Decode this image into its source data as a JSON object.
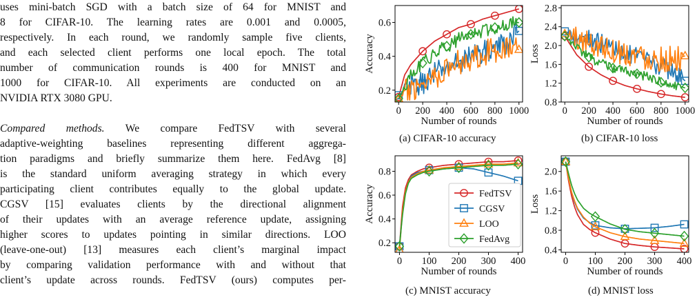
{
  "text": {
    "p1_lines": [
      "uses mini-batch SGD with a batch size of 64 for MNIST and",
      "8 for CIFAR-10. The learning rates are 0.001 and 0.0005,",
      "respectively. In each round, we randomly sample five clients,",
      "and each selected client performs one local epoch. The total",
      "number of communication rounds is 400 for MNIST and",
      "1000 for CIFAR-10. All experiments are conducted on an",
      "NVIDIA RTX 3080 GPU."
    ],
    "p2_heading": "Compared methods.",
    "p2_first_rest": " We compare FedTSV with several",
    "p2_lines": [
      "adaptive-weighting baselines representing different aggrega-",
      "tion paradigms and briefly summarize them here. FedAvg [8]",
      "is the standard uniform averaging strategy in which every",
      "participating client contributes equally to the global update.",
      "CGSV [15] evaluates clients by the directional alignment",
      "of their updates with an average reference update, assigning",
      "higher scores to updates pointing in similar directions. LOO",
      "(leave-one-out) [13] measures each client’s marginal impact",
      "by comparing validation performance with and without that",
      "client’s update across rounds. FedTSV (ours) computes per-"
    ]
  },
  "captions": {
    "a": "(a) CIFAR-10 accuracy",
    "b": "(b) CIFAR-10 loss",
    "c": "(c) MNIST accuracy",
    "d": "(d) MNIST loss"
  },
  "colors": {
    "FedTSV": "#d62728",
    "CGSV": "#1f77b4",
    "LOO": "#ff7f0e",
    "FedAvg": "#2ca02c"
  },
  "chart_data": [
    {
      "id": "a",
      "type": "line",
      "xlabel": "Number of rounds",
      "ylabel": "Accuracy",
      "xlim": [
        -30,
        1030
      ],
      "ylim": [
        0.13,
        0.7
      ],
      "xticks": [
        0,
        200,
        400,
        600,
        800,
        1000
      ],
      "xtick_labels": [
        "0",
        "200",
        "400",
        "600",
        "800",
        "1000"
      ],
      "yticks": [
        0.2,
        0.4,
        0.6
      ],
      "ytick_labels": [
        "0.2",
        "0.4",
        "0.6"
      ],
      "noisy": true,
      "series": [
        {
          "name": "FedTSV",
          "marker": "circle",
          "markers_x": [
            0,
            200,
            400,
            600,
            800,
            1000
          ],
          "x": [
            0,
            50,
            100,
            150,
            200,
            300,
            400,
            500,
            600,
            700,
            800,
            900,
            1000
          ],
          "y": [
            0.16,
            0.29,
            0.35,
            0.39,
            0.43,
            0.49,
            0.53,
            0.57,
            0.59,
            0.62,
            0.64,
            0.66,
            0.68
          ],
          "amp": 0.0
        },
        {
          "name": "CGSV",
          "marker": "square",
          "markers_x": [
            0,
            200,
            1000
          ],
          "x": [
            0,
            100,
            200,
            300,
            400,
            500,
            600,
            700,
            800,
            900,
            1000
          ],
          "y": [
            0.17,
            0.22,
            0.24,
            0.3,
            0.33,
            0.37,
            0.4,
            0.43,
            0.45,
            0.48,
            0.55
          ],
          "amp": 0.07
        },
        {
          "name": "LOO",
          "marker": "triangle",
          "markers_x": [
            0,
            1000
          ],
          "x": [
            0,
            100,
            200,
            300,
            400,
            500,
            600,
            700,
            800,
            900,
            1000
          ],
          "y": [
            0.15,
            0.21,
            0.25,
            0.29,
            0.32,
            0.37,
            0.39,
            0.42,
            0.44,
            0.46,
            0.44
          ],
          "amp": 0.08
        },
        {
          "name": "FedAvg",
          "marker": "diamond",
          "markers_x": [
            0,
            200,
            400,
            600,
            800,
            1000
          ],
          "x": [
            0,
            100,
            200,
            300,
            400,
            500,
            600,
            700,
            800,
            900,
            1000
          ],
          "y": [
            0.15,
            0.28,
            0.36,
            0.42,
            0.46,
            0.5,
            0.53,
            0.55,
            0.57,
            0.59,
            0.6
          ],
          "amp": 0.04
        }
      ]
    },
    {
      "id": "b",
      "type": "line",
      "xlabel": "Number of rounds",
      "ylabel": "Loss",
      "xlim": [
        -30,
        1030
      ],
      "ylim": [
        0.8,
        2.85
      ],
      "xticks": [
        0,
        200,
        400,
        600,
        800,
        1000
      ],
      "xtick_labels": [
        "0",
        "200",
        "400",
        "600",
        "800",
        "1000"
      ],
      "yticks": [
        0.8,
        1.2,
        1.6,
        2.0,
        2.4,
        2.8
      ],
      "ytick_labels": [
        "0.8",
        "1.2",
        "1.6",
        "2.0",
        "2.4",
        "2.8"
      ],
      "noisy": true,
      "series": [
        {
          "name": "FedTSV",
          "marker": "circle",
          "markers_x": [
            0,
            200,
            400,
            600,
            800,
            1000
          ],
          "x": [
            0,
            100,
            200,
            300,
            400,
            500,
            600,
            700,
            800,
            900,
            1000
          ],
          "y": [
            2.2,
            1.8,
            1.55,
            1.38,
            1.25,
            1.15,
            1.08,
            1.02,
            0.97,
            0.93,
            0.9
          ],
          "amp": 0.0
        },
        {
          "name": "CGSV",
          "marker": "square",
          "markers_x": [
            0,
            200,
            1000
          ],
          "x": [
            0,
            100,
            200,
            300,
            400,
            500,
            600,
            700,
            800,
            900,
            1000
          ],
          "y": [
            2.3,
            2.2,
            2.15,
            2.05,
            1.95,
            1.85,
            1.75,
            1.65,
            1.55,
            1.45,
            1.25
          ],
          "amp": 0.2
        },
        {
          "name": "LOO",
          "marker": "triangle",
          "markers_x": [
            0,
            1000
          ],
          "x": [
            0,
            100,
            200,
            300,
            400,
            500,
            600,
            700,
            800,
            900,
            1000
          ],
          "y": [
            2.25,
            2.15,
            2.05,
            2.0,
            1.9,
            1.85,
            1.8,
            1.75,
            1.72,
            1.7,
            1.78
          ],
          "amp": 0.28
        },
        {
          "name": "FedAvg",
          "marker": "diamond",
          "markers_x": [
            0,
            200,
            400,
            600,
            800,
            1000
          ],
          "x": [
            0,
            100,
            200,
            300,
            400,
            500,
            600,
            700,
            800,
            900,
            1000
          ],
          "y": [
            2.2,
            1.95,
            1.75,
            1.62,
            1.52,
            1.45,
            1.4,
            1.32,
            1.22,
            1.15,
            1.1
          ],
          "amp": 0.1
        }
      ]
    },
    {
      "id": "c",
      "type": "line",
      "xlabel": "Number of rounds",
      "ylabel": "Accuracy",
      "xlim": [
        -15,
        415
      ],
      "ylim": [
        0.12,
        0.93
      ],
      "xticks": [
        0,
        100,
        200,
        300,
        400
      ],
      "xtick_labels": [
        "0",
        "100",
        "200",
        "300",
        "400"
      ],
      "yticks": [
        0.2,
        0.4,
        0.6,
        0.8
      ],
      "ytick_labels": [
        "0.2",
        "0.4",
        "0.6",
        "0.8"
      ],
      "noisy": false,
      "legend": "center-right",
      "series": [
        {
          "name": "FedTSV",
          "marker": "circle",
          "markers_x": [
            0,
            100,
            200,
            300,
            400
          ],
          "x": [
            0,
            10,
            20,
            30,
            40,
            60,
            80,
            100,
            150,
            200,
            250,
            300,
            350,
            400
          ],
          "y": [
            0.17,
            0.5,
            0.66,
            0.73,
            0.77,
            0.8,
            0.82,
            0.83,
            0.85,
            0.86,
            0.87,
            0.88,
            0.88,
            0.89
          ]
        },
        {
          "name": "CGSV",
          "marker": "square",
          "markers_x": [
            0,
            100,
            200,
            300,
            400
          ],
          "x": [
            0,
            10,
            20,
            30,
            40,
            60,
            80,
            100,
            150,
            200,
            250,
            300,
            350,
            400
          ],
          "y": [
            0.17,
            0.45,
            0.63,
            0.71,
            0.76,
            0.79,
            0.8,
            0.81,
            0.82,
            0.83,
            0.82,
            0.79,
            0.76,
            0.72
          ]
        },
        {
          "name": "LOO",
          "marker": "triangle",
          "markers_x": [
            0,
            100,
            200,
            300,
            400
          ],
          "x": [
            0,
            10,
            20,
            30,
            40,
            60,
            80,
            100,
            150,
            200,
            250,
            300,
            350,
            400
          ],
          "y": [
            0.14,
            0.46,
            0.63,
            0.71,
            0.75,
            0.78,
            0.8,
            0.81,
            0.83,
            0.84,
            0.85,
            0.86,
            0.86,
            0.87
          ]
        },
        {
          "name": "FedAvg",
          "marker": "diamond",
          "markers_x": [
            0,
            100,
            200,
            300,
            400
          ],
          "x": [
            0,
            10,
            20,
            30,
            40,
            60,
            80,
            100,
            150,
            200,
            250,
            300,
            350,
            400
          ],
          "y": [
            0.17,
            0.43,
            0.61,
            0.7,
            0.74,
            0.77,
            0.79,
            0.8,
            0.82,
            0.83,
            0.84,
            0.85,
            0.85,
            0.86
          ]
        }
      ]
    },
    {
      "id": "d",
      "type": "line",
      "xlabel": "Number of rounds",
      "ylabel": "Loss",
      "xlim": [
        -15,
        415
      ],
      "ylim": [
        0.35,
        2.32
      ],
      "xticks": [
        0,
        100,
        200,
        300,
        400
      ],
      "xtick_labels": [
        "0",
        "100",
        "200",
        "300",
        "400"
      ],
      "yticks": [
        0.4,
        0.8,
        1.2,
        1.6,
        2.0
      ],
      "ytick_labels": [
        "0.4",
        "0.8",
        "1.2",
        "1.6",
        "2.0"
      ],
      "noisy": false,
      "series": [
        {
          "name": "FedTSV",
          "marker": "circle",
          "markers_x": [
            0,
            100,
            200,
            300,
            400
          ],
          "x": [
            0,
            10,
            20,
            30,
            40,
            60,
            80,
            100,
            150,
            200,
            250,
            300,
            350,
            400
          ],
          "y": [
            2.2,
            1.8,
            1.5,
            1.28,
            1.12,
            0.92,
            0.82,
            0.75,
            0.62,
            0.53,
            0.49,
            0.46,
            0.44,
            0.42
          ]
        },
        {
          "name": "CGSV",
          "marker": "square",
          "markers_x": [
            0,
            100,
            200,
            300,
            400
          ],
          "x": [
            0,
            10,
            20,
            30,
            40,
            60,
            80,
            100,
            150,
            200,
            250,
            300,
            350,
            400
          ],
          "y": [
            2.2,
            1.85,
            1.58,
            1.38,
            1.23,
            1.05,
            0.96,
            0.9,
            0.85,
            0.83,
            0.84,
            0.85,
            0.88,
            0.92
          ]
        },
        {
          "name": "LOO",
          "marker": "triangle",
          "markers_x": [
            0,
            100,
            200,
            300,
            400
          ],
          "x": [
            0,
            10,
            20,
            30,
            40,
            60,
            80,
            100,
            150,
            200,
            250,
            300,
            350,
            400
          ],
          "y": [
            2.2,
            1.85,
            1.58,
            1.4,
            1.25,
            1.07,
            0.95,
            0.87,
            0.75,
            0.67,
            0.62,
            0.59,
            0.56,
            0.53
          ]
        },
        {
          "name": "FedAvg",
          "marker": "diamond",
          "markers_x": [
            0,
            100,
            200,
            300,
            400
          ],
          "x": [
            0,
            10,
            20,
            30,
            40,
            60,
            80,
            100,
            150,
            200,
            250,
            300,
            350,
            400
          ],
          "y": [
            2.2,
            1.95,
            1.72,
            1.55,
            1.42,
            1.25,
            1.15,
            1.08,
            0.93,
            0.82,
            0.77,
            0.74,
            0.71,
            0.68
          ]
        }
      ]
    }
  ]
}
